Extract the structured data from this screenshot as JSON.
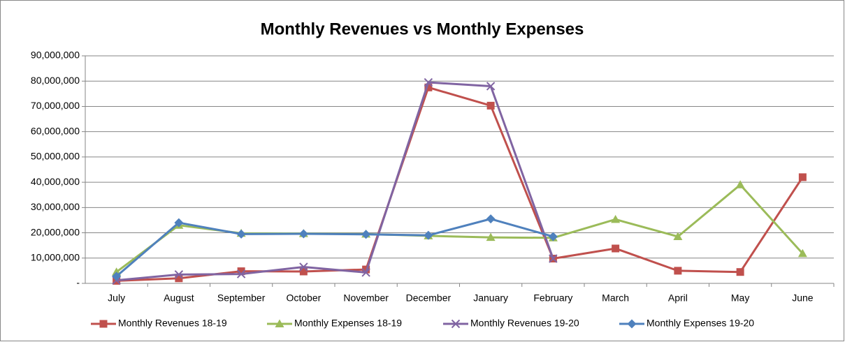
{
  "chart_data": {
    "type": "line",
    "title": "Monthly Revenues vs Monthly Expenses",
    "categories": [
      "July",
      "August",
      "September",
      "October",
      "November",
      "December",
      "January",
      "February",
      "March",
      "April",
      "May",
      "June"
    ],
    "series": [
      {
        "name": "Monthly Revenues 18-19",
        "color": "#c0504d",
        "marker": "square",
        "values": [
          1000000,
          2000000,
          4800000,
          4700000,
          5500000,
          77500000,
          70300000,
          9800000,
          13800000,
          5000000,
          4500000,
          42000000
        ]
      },
      {
        "name": "Monthly Expenses 18-19",
        "color": "#9bbb59",
        "marker": "triangle",
        "values": [
          4500000,
          23000000,
          19800000,
          19700000,
          19500000,
          18800000,
          18200000,
          18000000,
          25300000,
          18500000,
          39000000,
          11800000
        ]
      },
      {
        "name": "Monthly Revenues 19-20",
        "color": "#8064a2",
        "marker": "x",
        "values": [
          1200000,
          3500000,
          3700000,
          6500000,
          4300000,
          79500000,
          78000000,
          9800000,
          null,
          null,
          null,
          null
        ]
      },
      {
        "name": "Monthly Expenses 19-20",
        "color": "#4f81bd",
        "marker": "diamond",
        "values": [
          2800000,
          24000000,
          19500000,
          19600000,
          19400000,
          19000000,
          25500000,
          18500000,
          null,
          null,
          null,
          null
        ]
      }
    ],
    "ylim": [
      0,
      90000000
    ],
    "yticks": [
      {
        "value": 0,
        "label": "-"
      },
      {
        "value": 10000000,
        "label": "10,000,000"
      },
      {
        "value": 20000000,
        "label": "20,000,000"
      },
      {
        "value": 30000000,
        "label": "30,000,000"
      },
      {
        "value": 40000000,
        "label": "40,000,000"
      },
      {
        "value": 50000000,
        "label": "50,000,000"
      },
      {
        "value": 60000000,
        "label": "60,000,000"
      },
      {
        "value": 70000000,
        "label": "70,000,000"
      },
      {
        "value": 80000000,
        "label": "80,000,000"
      },
      {
        "value": 90000000,
        "label": "90,000,000"
      }
    ],
    "grid": true,
    "legend": "bottom"
  }
}
